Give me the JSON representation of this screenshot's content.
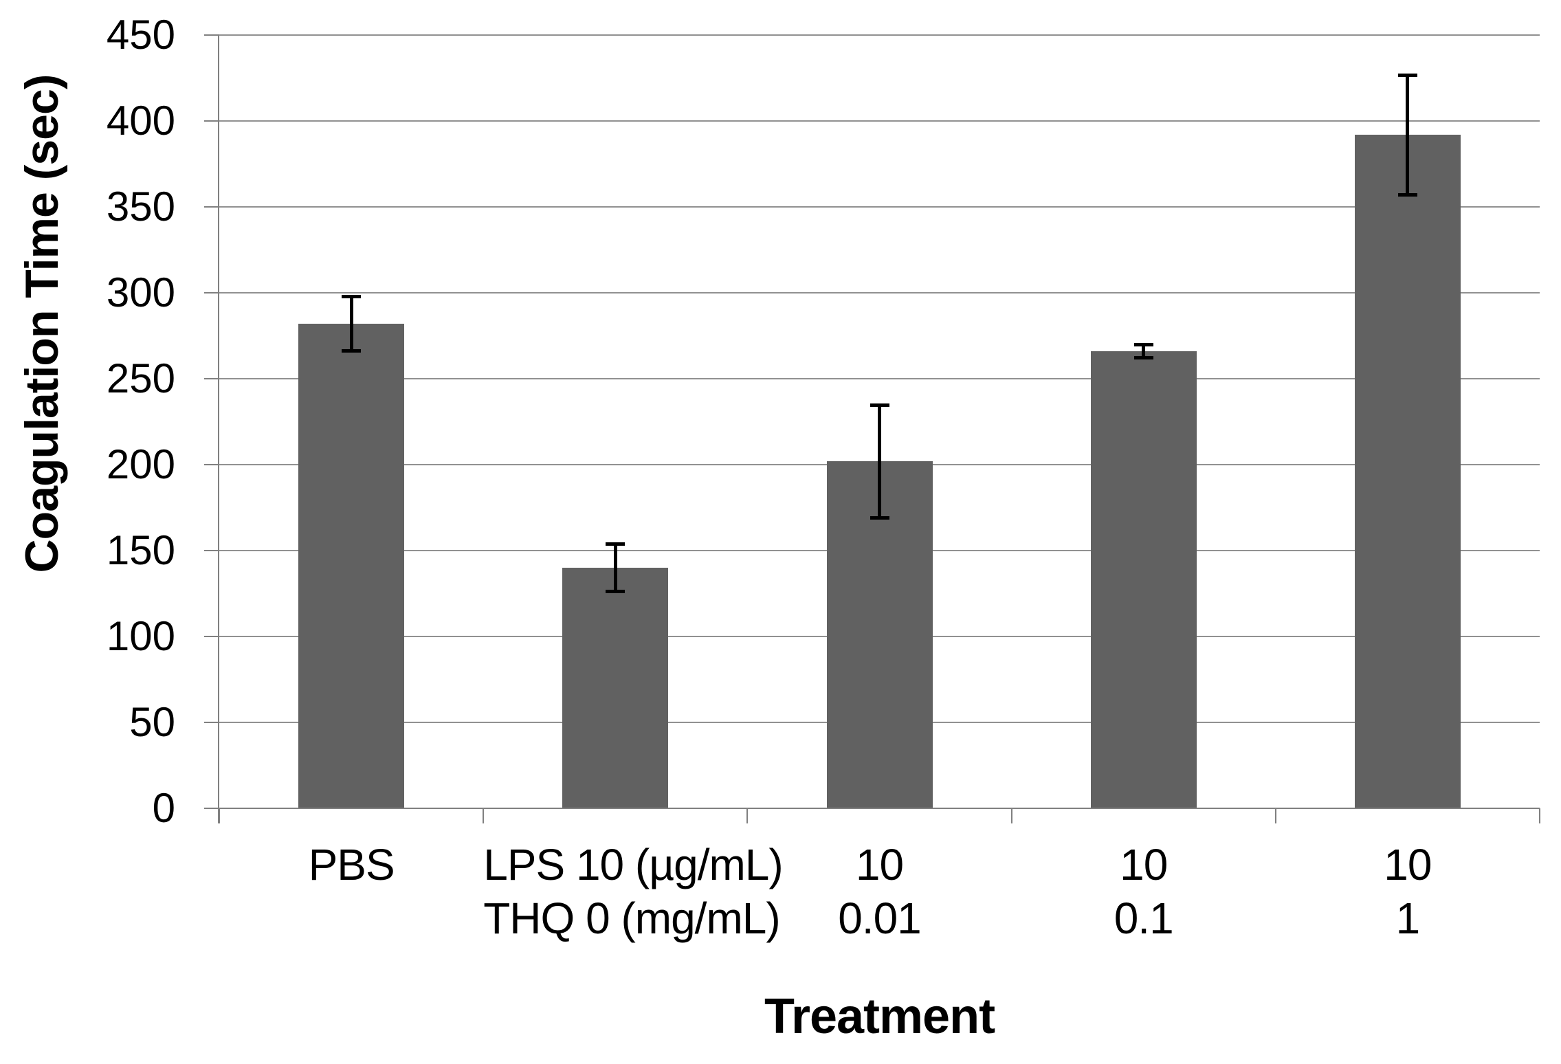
{
  "chart_data": {
    "type": "bar",
    "title": "",
    "ylabel": "Coagulation Time (sec)",
    "xlabel": "Treatment",
    "ylim": [
      0,
      450
    ],
    "yticks": [
      0,
      50,
      100,
      150,
      200,
      250,
      300,
      350,
      400,
      450
    ],
    "grid": "horizontal-major",
    "legend_position": "none",
    "categories": [
      {
        "line1": "PBS",
        "line2": ""
      },
      {
        "line1": "LPS 10 (µg/mL)",
        "line2": "THQ 0 (mg/mL)"
      },
      {
        "line1": "10",
        "line2": "0.01"
      },
      {
        "line1": "10",
        "line2": "0.1"
      },
      {
        "line1": "10",
        "line2": "1"
      }
    ],
    "series": [
      {
        "name": "Coagulation Time",
        "values": [
          282,
          140,
          202,
          266,
          392
        ],
        "errors": [
          16,
          14,
          33,
          4,
          35
        ]
      }
    ],
    "colors": {
      "bar_fill": "#616161",
      "gridline": "#919191",
      "axis": "#808080",
      "error_bar": "#000000",
      "text": "#000000",
      "background": "#ffffff"
    }
  }
}
